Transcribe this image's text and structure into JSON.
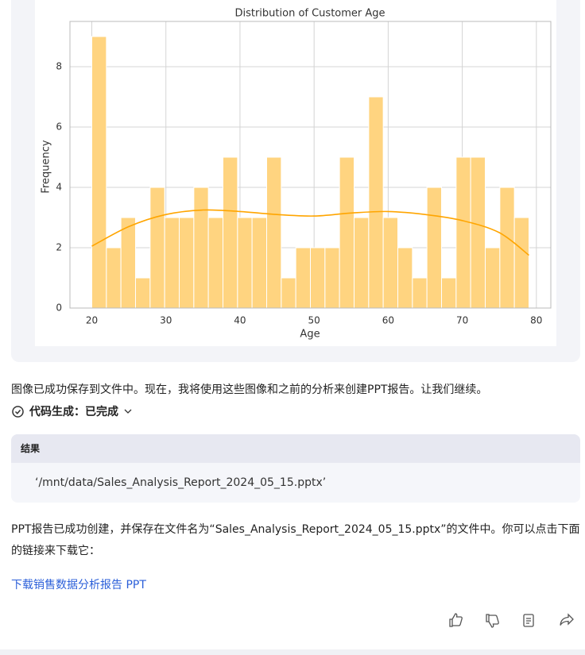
{
  "chart_data": {
    "type": "histogram",
    "title": "Distribution of Customer Age",
    "x_label": "Age",
    "y_label": "Frequency",
    "bins": [
      20,
      21.97,
      23.93,
      25.9,
      27.87,
      29.83,
      31.8,
      33.77,
      35.73,
      37.7,
      39.67,
      41.63,
      43.6,
      45.57,
      47.53,
      49.5,
      51.47,
      53.43,
      55.4,
      57.37,
      59.33,
      61.3,
      63.27,
      65.23,
      67.2,
      69.17,
      71.13,
      73.1,
      75.07,
      77.03,
      79
    ],
    "values": [
      9,
      2,
      3,
      1,
      4,
      3,
      3,
      4,
      3,
      5,
      3,
      3,
      5,
      1,
      2,
      2,
      2,
      5,
      3,
      7,
      3,
      2,
      1,
      4,
      1,
      5,
      5,
      2,
      4,
      3
    ],
    "color": "#ffd480",
    "kde": {
      "x": [
        20,
        25,
        30,
        35,
        40,
        45,
        50,
        55,
        60,
        65,
        70,
        75,
        79
      ],
      "values": [
        2.05,
        2.7,
        3.1,
        3.25,
        3.2,
        3.1,
        3.05,
        3.15,
        3.2,
        3.1,
        2.9,
        2.5,
        1.75
      ],
      "color": "#ffa500"
    },
    "xlim": [
      17.05,
      81.95
    ],
    "ylim": [
      0,
      9.5
    ],
    "xticks": [
      20,
      30,
      40,
      50,
      60,
      70,
      80
    ],
    "yticks": [
      0,
      2,
      4,
      6,
      8
    ],
    "grid": true
  },
  "message": {
    "text1": "图像已成功保存到文件中。现在，我将使用这些图像和之前的分析来创建PPT报告。让我们继续。",
    "code_status": "代码生成：已完成",
    "result_header": "结果",
    "result_value": "‘/mnt/data/Sales_Analysis_Report_2024_05_15.pptx’",
    "text2": "PPT报告已成功创建，并保存在文件名为“Sales_Analysis_Report_2024_05_15.pptx”的文件中。你可以点击下面的链接来下载它：",
    "link": "下载销售数据分析报告 PPT"
  }
}
